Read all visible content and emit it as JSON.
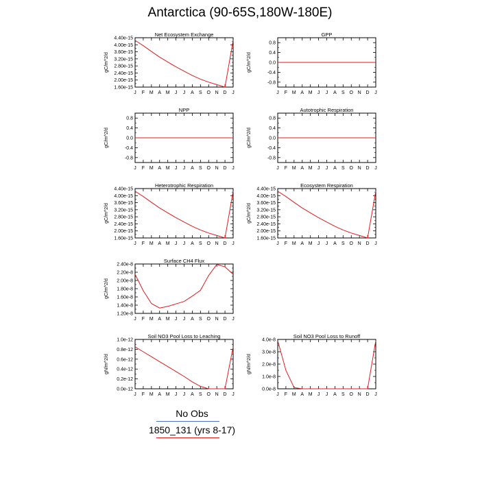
{
  "title": "Antarctica (90-65S,180W-180E)",
  "months": [
    "J",
    "F",
    "M",
    "A",
    "M",
    "J",
    "J",
    "A",
    "S",
    "O",
    "N",
    "D",
    "J"
  ],
  "colors": {
    "model": "#e31a1c",
    "obs": "#4a78c9",
    "axis": "#000000"
  },
  "legend": {
    "obs_label": "No Obs",
    "model_label": "1850_131 (yrs 8-17)"
  },
  "chart_data": [
    {
      "type": "line",
      "title": "Net Ecosystem Exchange",
      "ylabel": "gC/m^2/d",
      "ylim": [
        1.6e-15,
        4.4e-15
      ],
      "yticks": [
        1.6e-15,
        2e-15,
        2.4e-15,
        2.8e-15,
        3.2e-15,
        3.6e-15,
        4e-15,
        4.4e-15
      ],
      "ytick_labels": [
        "1.60e-15",
        "2.00e-15",
        "2.40e-15",
        "2.80e-15",
        "3.20e-15",
        "3.60e-15",
        "4.00e-15",
        "4.40e-15"
      ],
      "x": [
        1,
        2,
        3,
        4,
        5,
        6,
        7,
        8,
        9,
        10,
        11,
        12,
        13
      ],
      "series": [
        {
          "values": [
            4.25e-15,
            3.95e-15,
            3.62e-15,
            3.3e-15,
            3.02e-15,
            2.75e-15,
            2.5e-15,
            2.26e-15,
            2.05e-15,
            1.88e-15,
            1.74e-15,
            1.6e-15,
            4.25e-15
          ]
        }
      ]
    },
    {
      "type": "line",
      "title": "GPP",
      "ylabel": "gC/m^2/d",
      "ylim": [
        -1.0,
        1.0
      ],
      "yticks": [
        -0.8,
        -0.4,
        0.0,
        0.4,
        0.8
      ],
      "ytick_labels": [
        "-0.8",
        "-0.4",
        "0.0",
        "0.4",
        "0.8"
      ],
      "x": [
        1,
        2,
        3,
        4,
        5,
        6,
        7,
        8,
        9,
        10,
        11,
        12,
        13
      ],
      "series": [
        {
          "values": [
            0,
            0,
            0,
            0,
            0,
            0,
            0,
            0,
            0,
            0,
            0,
            0,
            0
          ]
        }
      ]
    },
    {
      "type": "line",
      "title": "NPP",
      "ylabel": "gC/m^2/d",
      "ylim": [
        -1.0,
        1.0
      ],
      "yticks": [
        -0.8,
        -0.4,
        0.0,
        0.4,
        0.8
      ],
      "ytick_labels": [
        "-0.8",
        "-0.4",
        "0.0",
        "0.4",
        "0.8"
      ],
      "x": [
        1,
        2,
        3,
        4,
        5,
        6,
        7,
        8,
        9,
        10,
        11,
        12,
        13
      ],
      "series": [
        {
          "values": [
            0,
            0,
            0,
            0,
            0,
            0,
            0,
            0,
            0,
            0,
            0,
            0,
            0
          ]
        }
      ]
    },
    {
      "type": "line",
      "title": "Autotrophic Respiration",
      "ylabel": "gC/m^2/d",
      "ylim": [
        -1.0,
        1.0
      ],
      "yticks": [
        -0.8,
        -0.4,
        0.0,
        0.4,
        0.8
      ],
      "ytick_labels": [
        "-0.8",
        "-0.4",
        "0.0",
        "0.4",
        "0.8"
      ],
      "x": [
        1,
        2,
        3,
        4,
        5,
        6,
        7,
        8,
        9,
        10,
        11,
        12,
        13
      ],
      "series": [
        {
          "values": [
            0,
            0,
            0,
            0,
            0,
            0,
            0,
            0,
            0,
            0,
            0,
            0,
            0
          ]
        }
      ]
    },
    {
      "type": "line",
      "title": "Heterotrophic Respiration",
      "ylabel": "gC/m^2/d",
      "ylim": [
        1.6e-15,
        4.4e-15
      ],
      "yticks": [
        1.6e-15,
        2e-15,
        2.4e-15,
        2.8e-15,
        3.2e-15,
        3.6e-15,
        4e-15,
        4.4e-15
      ],
      "ytick_labels": [
        "1.60e-15",
        "2.00e-15",
        "2.40e-15",
        "2.80e-15",
        "3.20e-15",
        "3.60e-15",
        "4.00e-15",
        "4.40e-15"
      ],
      "x": [
        1,
        2,
        3,
        4,
        5,
        6,
        7,
        8,
        9,
        10,
        11,
        12,
        13
      ],
      "series": [
        {
          "values": [
            4.25e-15,
            3.95e-15,
            3.62e-15,
            3.3e-15,
            3.02e-15,
            2.75e-15,
            2.5e-15,
            2.26e-15,
            2.05e-15,
            1.88e-15,
            1.74e-15,
            1.6e-15,
            4.25e-15
          ]
        }
      ]
    },
    {
      "type": "line",
      "title": "Ecosystem Respiration",
      "ylabel": "gC/m^2/d",
      "ylim": [
        1.6e-15,
        4.4e-15
      ],
      "yticks": [
        1.6e-15,
        2e-15,
        2.4e-15,
        2.8e-15,
        3.2e-15,
        3.6e-15,
        4e-15,
        4.4e-15
      ],
      "ytick_labels": [
        "1.60e-15",
        "2.00e-15",
        "2.40e-15",
        "2.80e-15",
        "3.20e-15",
        "3.60e-15",
        "4.00e-15",
        "4.40e-15"
      ],
      "x": [
        1,
        2,
        3,
        4,
        5,
        6,
        7,
        8,
        9,
        10,
        11,
        12,
        13
      ],
      "series": [
        {
          "values": [
            4.25e-15,
            3.95e-15,
            3.62e-15,
            3.3e-15,
            3.02e-15,
            2.75e-15,
            2.5e-15,
            2.26e-15,
            2.05e-15,
            1.88e-15,
            1.74e-15,
            1.6e-15,
            4.25e-15
          ]
        }
      ]
    },
    {
      "type": "line",
      "title": "Surface CH4 Flux",
      "ylabel": "gC/m^2/d",
      "ylim": [
        1.2e-08,
        2.4e-08
      ],
      "yticks": [
        1.2e-08,
        1.4e-08,
        1.6e-08,
        1.8e-08,
        2e-08,
        2.2e-08,
        2.4e-08
      ],
      "ytick_labels": [
        "1.20e-8",
        "1.40e-8",
        "1.60e-8",
        "1.80e-8",
        "2.00e-8",
        "2.20e-8",
        "2.40e-8"
      ],
      "x": [
        1,
        2,
        3,
        4,
        5,
        6,
        7,
        8,
        9,
        10,
        11,
        12,
        13
      ],
      "series": [
        {
          "values": [
            2.15e-08,
            1.75e-08,
            1.44e-08,
            1.33e-08,
            1.37e-08,
            1.43e-08,
            1.49e-08,
            1.62e-08,
            1.76e-08,
            2.12e-08,
            2.39e-08,
            2.33e-08,
            2.15e-08
          ]
        }
      ]
    },
    {
      "type": "line",
      "title": "Soil NO3 Pool Loss to Leaching",
      "ylabel": "gN/m^2/d",
      "ylim": [
        0.0,
        1e-12
      ],
      "yticks": [
        0.0,
        2e-13,
        4e-13,
        6e-13,
        8e-13,
        1e-12
      ],
      "ytick_labels": [
        "0.0e-12",
        "0.2e-12",
        "0.4e-12",
        "0.6e-12",
        "0.8e-12",
        "1.0e-12"
      ],
      "x": [
        1,
        2,
        3,
        4,
        5,
        6,
        7,
        8,
        9,
        10,
        11,
        12,
        13
      ],
      "series": [
        {
          "values": [
            8.5e-13,
            7.5e-13,
            6.5e-13,
            5.5e-13,
            4.5e-13,
            3.5e-13,
            2.5e-13,
            1.4e-13,
            5e-14,
            0.0,
            0.0,
            0.0,
            8.5e-13
          ]
        }
      ]
    },
    {
      "type": "line",
      "title": "Soil NO3 Pool Loss to Runoff",
      "ylabel": "gN/m^2/d",
      "ylim": [
        0.0,
        4e-08
      ],
      "yticks": [
        0.0,
        1e-08,
        2e-08,
        3e-08,
        4e-08
      ],
      "ytick_labels": [
        "0.0e-8",
        "1.0e-8",
        "2.0e-8",
        "3.0e-8",
        "4.0e-8"
      ],
      "x": [
        1,
        2,
        3,
        4,
        5,
        6,
        7,
        8,
        9,
        10,
        11,
        12,
        13
      ],
      "series": [
        {
          "values": [
            3.9e-08,
            1.5e-08,
            1e-09,
            0.0,
            0.0,
            0.0,
            0.0,
            0.0,
            0.0,
            0.0,
            0.0,
            0.0,
            3.9e-08
          ]
        }
      ]
    }
  ]
}
